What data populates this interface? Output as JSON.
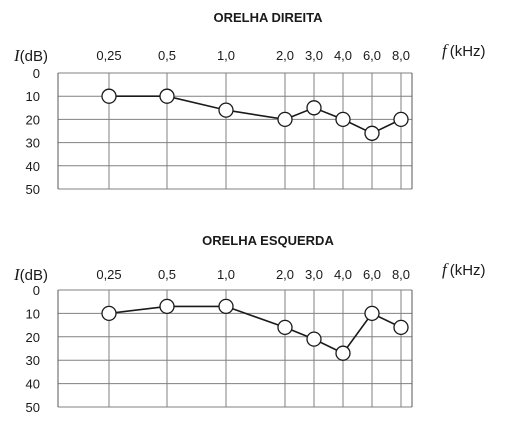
{
  "chart_data": [
    {
      "type": "line",
      "title": "ORELHA DIREITA",
      "ylabel_var": "I",
      "ylabel_unit": "(dB)",
      "xlabel_var": "f",
      "xlabel_unit": "(kHz)",
      "categories": [
        "0,25",
        "0,5",
        "1,0",
        "2,0",
        "3,0",
        "4,0",
        "6,0",
        "8,0"
      ],
      "yticks": [
        "0",
        "10",
        "20",
        "30",
        "40",
        "50"
      ],
      "ylim": [
        0,
        50
      ],
      "y_inverted": true,
      "grid": true,
      "values": [
        10,
        10,
        16,
        20,
        15,
        20,
        26,
        20
      ]
    },
    {
      "type": "line",
      "title": "ORELHA ESQUERDA",
      "ylabel_var": "I",
      "ylabel_unit": "(dB)",
      "xlabel_var": "f",
      "xlabel_unit": "(kHz)",
      "categories": [
        "0,25",
        "0,5",
        "1,0",
        "2,0",
        "3,0",
        "4,0",
        "6,0",
        "8,0"
      ],
      "yticks": [
        "0",
        "10",
        "20",
        "30",
        "40",
        "50"
      ],
      "ylim": [
        0,
        50
      ],
      "y_inverted": true,
      "grid": true,
      "values": [
        10,
        7,
        7,
        16,
        21,
        27,
        10,
        16
      ]
    }
  ]
}
